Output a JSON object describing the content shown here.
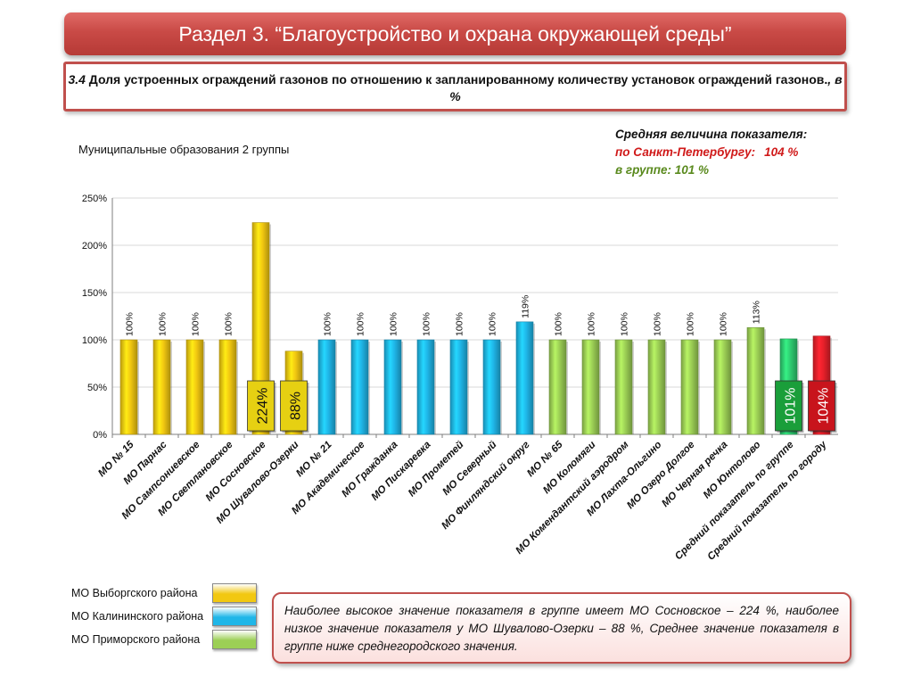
{
  "header": {
    "section_title": "Раздел 3. “Благоустройство и охрана окружающей среды”",
    "indicator_num": "3.4",
    "indicator_text": " Доля устроенных ограждений газонов по отношению к запланированному количеству установок ограждений газонов.",
    "indicator_unit": ", в %"
  },
  "group_label": "Муниципальные образования 2 группы",
  "averages": {
    "heading": "Средняя величина показателя:",
    "city_label": "по Санкт-Петербургу:",
    "city_value": "104 %",
    "group_line": "в группе: 101 %"
  },
  "chart_data": {
    "type": "bar",
    "ylim": [
      0,
      250
    ],
    "yticks": [
      "0%",
      "50%",
      "100%",
      "150%",
      "200%",
      "250%"
    ],
    "categories": [
      "МО № 15",
      "МО Парнас",
      "МО Сампсониевское",
      "МО Светлановское",
      "МО Сосновское",
      "МО Шувалово-Озерки",
      "МО № 21",
      "МО Академическое",
      "МО Гражданка",
      "МО Пискаревка",
      "МО Прометей",
      "МО Северный",
      "МО Финляндский округ",
      "МО № 65",
      "МО Коломяги",
      "МО Комендантский аэродром",
      "МО Лахта-Ольгино",
      "МО Озеро Долгое",
      "МО Черная речка",
      "МО Юнтолово",
      "Средний показатель по группе",
      "Средний показатель по городу"
    ],
    "values": [
      100,
      100,
      100,
      100,
      224,
      88,
      100,
      100,
      100,
      100,
      100,
      100,
      119,
      100,
      100,
      100,
      100,
      100,
      100,
      113,
      101,
      104
    ],
    "labels": [
      "100%",
      "100%",
      "100%",
      "100%",
      "224%",
      "88%",
      "100%",
      "100%",
      "100%",
      "100%",
      "100%",
      "100%",
      "119%",
      "100%",
      "100%",
      "100%",
      "100%",
      "100%",
      "100%",
      "113%",
      "101%",
      "104%"
    ],
    "groups": [
      "vyb",
      "vyb",
      "vyb",
      "vyb",
      "vyb",
      "vyb",
      "kal",
      "kal",
      "kal",
      "kal",
      "kal",
      "kal",
      "kal",
      "pri",
      "pri",
      "pri",
      "pri",
      "pri",
      "pri",
      "pri",
      "grp",
      "city"
    ],
    "highlighted": [
      4,
      5,
      20,
      21
    ],
    "colors": {
      "vyb": "#f2c811",
      "kal": "#1fb6e8",
      "pri": "#9ccf55",
      "grp": "#2ecc71",
      "city": "#e8202a",
      "highlight_yellow": "#e6d012",
      "highlight_green": "#1a9e3a",
      "highlight_red": "#c8141c"
    },
    "grid": true
  },
  "legend": [
    {
      "label": "МО Выборгского района",
      "key": "vyb"
    },
    {
      "label": "МО Калининского района",
      "key": "kal"
    },
    {
      "label": "МО Приморского района",
      "key": "pri"
    }
  ],
  "note": "Наиболее высокое значение показателя в группе имеет МО Сосновское – 224 %, наиболее низкое значение показателя у МО Шувалово-Озерки – 88 %, Среднее значение показателя в группе ниже среднегородского значения."
}
